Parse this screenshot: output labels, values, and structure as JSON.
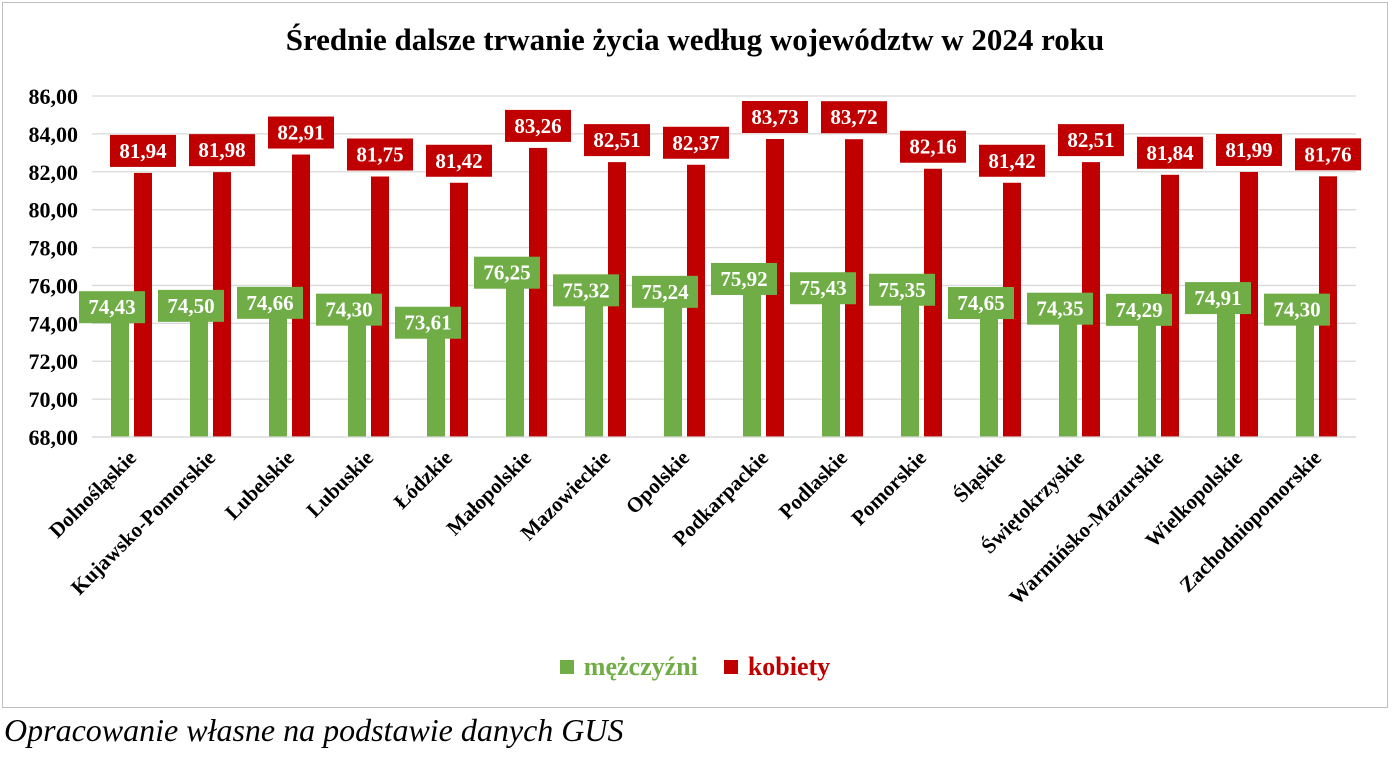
{
  "chart_data": {
    "type": "bar",
    "title": "Średnie dalsze trwanie życia według województw w 2024 roku",
    "categories": [
      "Dolnośląskie",
      "Kujawsko-Pomorskie",
      "Lubelskie",
      "Lubuskie",
      "Łódzkie",
      "Małopolskie",
      "Mazowieckie",
      "Opolskie",
      "Podkarpackie",
      "Podlaskie",
      "Pomorskie",
      "Śląskie",
      "Świętokrzyskie",
      "Warmińsko-Mazurskie",
      "Wielkopolskie",
      "Zachodniopomorskie"
    ],
    "series": [
      {
        "name": "mężczyźni",
        "color": "#70ad47",
        "values": [
          74.43,
          74.5,
          74.66,
          74.3,
          73.61,
          76.25,
          75.32,
          75.24,
          75.92,
          75.43,
          75.35,
          74.65,
          74.35,
          74.29,
          74.91,
          74.3
        ],
        "labels": [
          "74,43",
          "74,50",
          "74,66",
          "74,30",
          "73,61",
          "76,25",
          "75,32",
          "75,24",
          "75,92",
          "75,43",
          "75,35",
          "74,65",
          "74,35",
          "74,29",
          "74,91",
          "74,30"
        ]
      },
      {
        "name": "kobiety",
        "color": "#c00000",
        "values": [
          81.94,
          81.98,
          82.91,
          81.75,
          81.42,
          83.26,
          82.51,
          82.37,
          83.73,
          83.72,
          82.16,
          81.42,
          82.51,
          81.84,
          81.99,
          81.76
        ],
        "labels": [
          "81,94",
          "81,98",
          "82,91",
          "81,75",
          "81,42",
          "83,26",
          "82,51",
          "82,37",
          "83,73",
          "83,72",
          "82,16",
          "81,42",
          "82,51",
          "81,84",
          "81,99",
          "81,76"
        ]
      }
    ],
    "ylim": [
      68,
      86
    ],
    "yticks": [
      "68,00",
      "70,00",
      "72,00",
      "74,00",
      "76,00",
      "78,00",
      "80,00",
      "82,00",
      "84,00",
      "86,00"
    ],
    "grid": true,
    "legend_position": "bottom"
  },
  "source": "Opracowanie własne na podstawie danych GUS"
}
